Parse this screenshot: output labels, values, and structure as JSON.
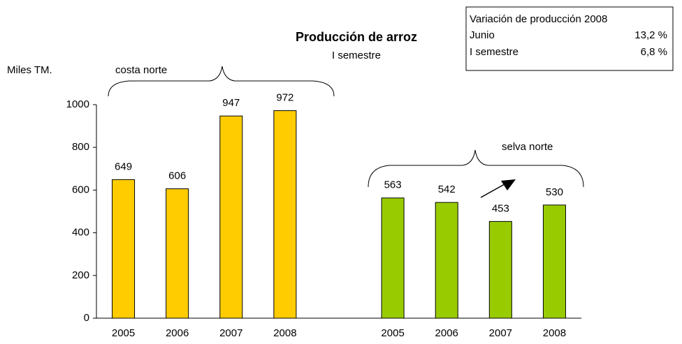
{
  "chart_data": {
    "type": "bar",
    "title": "Producción de arroz",
    "subtitle": "I semestre",
    "y_label": "Miles TM.",
    "categories": [
      "2005",
      "2006",
      "2007",
      "2008",
      null,
      "2005",
      "2006",
      "2007",
      "2008"
    ],
    "series": [
      {
        "name": "costa norte",
        "color": "#ffcc00",
        "values": [
          649,
          606,
          947,
          972,
          null,
          null,
          null,
          null,
          null
        ]
      },
      {
        "name": "selva norte",
        "color": "#99cc00",
        "values": [
          null,
          null,
          null,
          null,
          null,
          563,
          542,
          453,
          530
        ]
      }
    ],
    "ylim": [
      0,
      1000
    ],
    "yticks": [
      0,
      200,
      400,
      600,
      800,
      1000
    ],
    "grid": false,
    "info_box": {
      "title": "Variación de producción 2008",
      "rows": [
        [
          "Junio",
          "13,2 %"
        ],
        [
          "I semestre",
          "6,8 %"
        ]
      ]
    }
  }
}
